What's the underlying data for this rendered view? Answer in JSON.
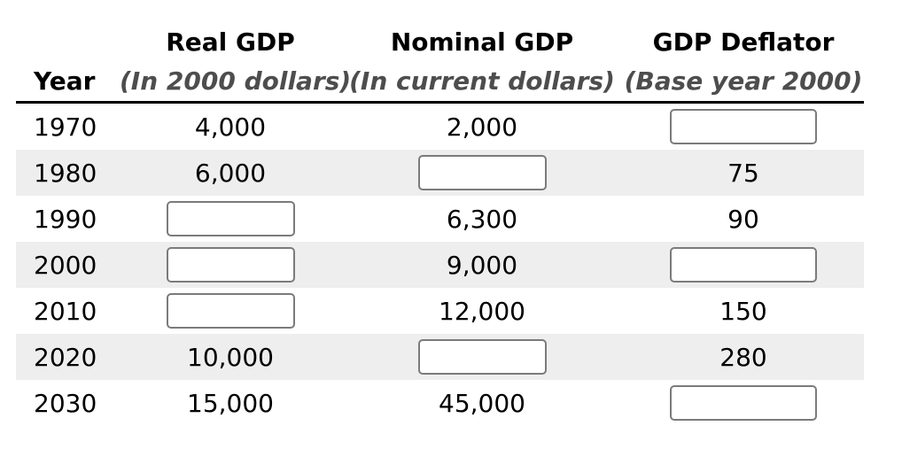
{
  "table": {
    "header": {
      "year_label": "Year",
      "columns": [
        {
          "title": "Real GDP",
          "subtitle": "(In 2000 dollars)"
        },
        {
          "title": "Nominal GDP",
          "subtitle": "(In current dollars)"
        },
        {
          "title": "GDP Deflator",
          "subtitle": "(Base year 2000)"
        }
      ]
    },
    "rows": [
      {
        "year": "1970",
        "real": "4,000",
        "nominal": "2,000",
        "deflator": ""
      },
      {
        "year": "1980",
        "real": "6,000",
        "nominal": "",
        "deflator": "75"
      },
      {
        "year": "1990",
        "real": "",
        "nominal": "6,300",
        "deflator": "90"
      },
      {
        "year": "2000",
        "real": "",
        "nominal": "9,000",
        "deflator": ""
      },
      {
        "year": "2010",
        "real": "",
        "nominal": "12,000",
        "deflator": "150"
      },
      {
        "year": "2020",
        "real": "10,000",
        "nominal": "",
        "deflator": "280"
      },
      {
        "year": "2030",
        "real": "15,000",
        "nominal": "45,000",
        "deflator": ""
      }
    ],
    "colors": {
      "stripe": "#eeeeee",
      "subtitle_text": "#4d4d4d",
      "input_border": "#7b7b7b",
      "header_rule": "#000000",
      "text": "#000000",
      "background": "#ffffff"
    }
  }
}
